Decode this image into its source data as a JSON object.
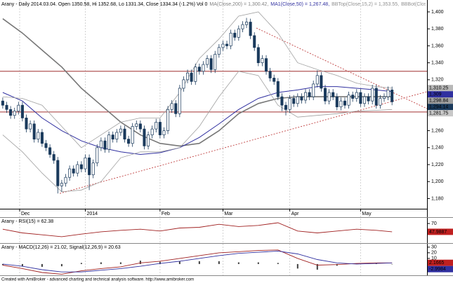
{
  "chart_data": {
    "type": "candlestick",
    "header": [
      {
        "text": "Arany - Daily 2014.03.04. Open 1350.58, Hi 1352.68, Lo 1331.34, Close 1334.34 (-1.2%) Vol 0",
        "color": "#000000"
      },
      {
        "text": "MA(Close,200) = 1,300.42,",
        "color": "#808080"
      },
      {
        "text": "MA1(Close,50) = 1,267.48,",
        "color": "#3030a0"
      },
      {
        "text": "BBTop(Close,15,2) = 1,353.55,",
        "color": "#909090"
      },
      {
        "text": "BBBot(Close,15,2) = *",
        "color": "#909090"
      }
    ],
    "up_color": "#ffffff",
    "down_color": "#1a3a5c",
    "ohlc": [
      [
        1295,
        1299,
        1286,
        1290
      ],
      [
        1290,
        1294,
        1281,
        1285
      ],
      [
        1285,
        1289,
        1274,
        1278
      ],
      [
        1278,
        1287,
        1274,
        1283
      ],
      [
        1283,
        1294,
        1279,
        1290
      ],
      [
        1290,
        1294,
        1271,
        1275
      ],
      [
        1275,
        1279,
        1258,
        1262
      ],
      [
        1262,
        1272,
        1258,
        1268
      ],
      [
        1268,
        1272,
        1246,
        1250
      ],
      [
        1250,
        1262,
        1246,
        1258
      ],
      [
        1258,
        1262,
        1241,
        1245
      ],
      [
        1245,
        1249,
        1236,
        1240
      ],
      [
        1240,
        1244,
        1228,
        1232
      ],
      [
        1232,
        1236,
        1221,
        1225
      ],
      [
        1225,
        1229,
        1186,
        1195
      ],
      [
        1195,
        1202,
        1188,
        1198
      ],
      [
        1198,
        1209,
        1194,
        1205
      ],
      [
        1205,
        1219,
        1201,
        1215
      ],
      [
        1215,
        1219,
        1206,
        1210
      ],
      [
        1210,
        1224,
        1206,
        1220
      ],
      [
        1220,
        1224,
        1211,
        1215
      ],
      [
        1215,
        1232,
        1211,
        1228
      ],
      [
        1228,
        1232,
        1190,
        1208
      ],
      [
        1208,
        1226,
        1204,
        1222
      ],
      [
        1222,
        1244,
        1218,
        1240
      ],
      [
        1240,
        1252,
        1236,
        1248
      ],
      [
        1248,
        1252,
        1234,
        1238
      ],
      [
        1238,
        1259,
        1234,
        1255
      ],
      [
        1255,
        1259,
        1246,
        1250
      ],
      [
        1250,
        1262,
        1246,
        1258
      ],
      [
        1258,
        1266,
        1254,
        1262
      ],
      [
        1262,
        1266,
        1246,
        1250
      ],
      [
        1250,
        1254,
        1241,
        1245
      ],
      [
        1245,
        1269,
        1241,
        1265
      ],
      [
        1265,
        1272,
        1261,
        1268
      ],
      [
        1268,
        1272,
        1258,
        1262
      ],
      [
        1262,
        1266,
        1238,
        1242
      ],
      [
        1242,
        1259,
        1238,
        1255
      ],
      [
        1255,
        1266,
        1251,
        1262
      ],
      [
        1262,
        1274,
        1258,
        1270
      ],
      [
        1270,
        1274,
        1251,
        1255
      ],
      [
        1255,
        1264,
        1251,
        1260
      ],
      [
        1260,
        1289,
        1256,
        1285
      ],
      [
        1285,
        1296,
        1281,
        1292
      ],
      [
        1292,
        1296,
        1276,
        1280
      ],
      [
        1280,
        1314,
        1276,
        1310
      ],
      [
        1310,
        1324,
        1306,
        1320
      ],
      [
        1320,
        1332,
        1316,
        1328
      ],
      [
        1328,
        1332,
        1314,
        1318
      ],
      [
        1318,
        1339,
        1314,
        1335
      ],
      [
        1335,
        1339,
        1326,
        1330
      ],
      [
        1330,
        1342,
        1326,
        1338
      ],
      [
        1338,
        1349,
        1334,
        1345
      ],
      [
        1345,
        1349,
        1328,
        1332
      ],
      [
        1332,
        1354,
        1328,
        1350
      ],
      [
        1350,
        1362,
        1346,
        1358
      ],
      [
        1358,
        1366,
        1354,
        1362
      ],
      [
        1362,
        1366,
        1356,
        1360
      ],
      [
        1360,
        1379,
        1356,
        1375
      ],
      [
        1375,
        1379,
        1366,
        1370
      ],
      [
        1370,
        1384,
        1366,
        1380
      ],
      [
        1380,
        1389,
        1376,
        1385
      ],
      [
        1385,
        1393,
        1381,
        1388
      ],
      [
        1388,
        1392,
        1368,
        1372
      ],
      [
        1372,
        1376,
        1354,
        1358
      ],
      [
        1358,
        1362,
        1336,
        1340
      ],
      [
        1340,
        1349,
        1336,
        1345
      ],
      [
        1345,
        1349,
        1326,
        1330
      ],
      [
        1330,
        1334,
        1318,
        1322
      ],
      [
        1322,
        1326,
        1314,
        1318
      ],
      [
        1318,
        1322,
        1296,
        1300
      ],
      [
        1300,
        1304,
        1283,
        1290
      ],
      [
        1290,
        1294,
        1278,
        1285
      ],
      [
        1285,
        1302,
        1281,
        1298
      ],
      [
        1298,
        1302,
        1288,
        1292
      ],
      [
        1292,
        1304,
        1288,
        1300
      ],
      [
        1300,
        1304,
        1292,
        1296
      ],
      [
        1296,
        1309,
        1292,
        1305
      ],
      [
        1305,
        1309,
        1296,
        1300
      ],
      [
        1300,
        1319,
        1296,
        1315
      ],
      [
        1315,
        1331,
        1311,
        1325
      ],
      [
        1325,
        1329,
        1306,
        1310
      ],
      [
        1310,
        1314,
        1291,
        1295
      ],
      [
        1295,
        1309,
        1291,
        1305
      ],
      [
        1305,
        1309,
        1296,
        1300
      ],
      [
        1300,
        1304,
        1284,
        1288
      ],
      [
        1288,
        1299,
        1284,
        1295
      ],
      [
        1295,
        1299,
        1286,
        1290
      ],
      [
        1290,
        1306,
        1286,
        1302
      ],
      [
        1302,
        1306,
        1294,
        1298
      ],
      [
        1298,
        1309,
        1294,
        1305
      ],
      [
        1305,
        1309,
        1288,
        1292
      ],
      [
        1292,
        1304,
        1288,
        1300
      ],
      [
        1300,
        1304,
        1291,
        1295
      ],
      [
        1295,
        1314,
        1291,
        1310
      ],
      [
        1310,
        1314,
        1286,
        1290
      ],
      [
        1290,
        1302,
        1286,
        1298
      ],
      [
        1298,
        1304,
        1294,
        1300
      ],
      [
        1300,
        1312,
        1296,
        1308
      ],
      [
        1308,
        1312,
        1290,
        1294
      ]
    ],
    "xlim": [
      -0.7,
      107.9
    ],
    "ylim": [
      1168,
      1414
    ],
    "xticks": [
      {
        "value": 4.3,
        "label": "Dec"
      },
      {
        "value": 21,
        "label": "2014"
      },
      {
        "value": 40,
        "label": "Feb"
      },
      {
        "value": 56,
        "label": "Mar"
      },
      {
        "value": 73,
        "label": "Apr"
      },
      {
        "value": 91,
        "label": "May"
      }
    ],
    "yticks": [
      {
        "value": 1400,
        "label": "1,400"
      },
      {
        "value": 1380,
        "label": "1,380"
      },
      {
        "value": 1360,
        "label": "1,360"
      },
      {
        "value": 1340,
        "label": "1,340"
      },
      {
        "value": 1320,
        "label": "1,320"
      },
      {
        "value": 1300,
        "label": "1,300"
      },
      {
        "value": 1280,
        "label": "1,280"
      },
      {
        "value": 1260,
        "label": "1,260"
      },
      {
        "value": 1240,
        "label": "1,240"
      },
      {
        "value": 1220,
        "label": "1,220"
      },
      {
        "value": 1200,
        "label": "1,200"
      },
      {
        "value": 1180,
        "label": "1,180"
      }
    ],
    "vertical_grid": true,
    "line_x": [
      0,
      5,
      10,
      15,
      20,
      25,
      30,
      35,
      40,
      45,
      50,
      55,
      60,
      65,
      70,
      75,
      80,
      85,
      90,
      95,
      99
    ],
    "lines": [
      {
        "color": "#777777",
        "width": 1.6,
        "values": [
          1392,
          1375,
          1355,
          1335,
          1310,
          1290,
          1270,
          1255,
          1245,
          1242,
          1245,
          1260,
          1280,
          1292,
          1298,
          1300,
          1300,
          1300,
          1300,
          1300,
          1300
        ]
      },
      {
        "color": "#3030a0",
        "width": 1,
        "values": [
          1305,
          1295,
          1275,
          1260,
          1248,
          1240,
          1235,
          1232,
          1234,
          1240,
          1252,
          1268,
          1285,
          1298,
          1305,
          1308,
          1312,
          1312,
          1310,
          1308,
          1306
        ]
      },
      {
        "color": "#a0a0a0",
        "width": 0.8,
        "values": [
          1300,
          1298,
          1290,
          1265,
          1240,
          1255,
          1270,
          1275,
          1275,
          1305,
          1345,
          1368,
          1395,
          1400,
          1375,
          1340,
          1332,
          1325,
          1316,
          1312,
          1310
        ]
      },
      {
        "color": "#a0a0a0",
        "width": 0.8,
        "values": [
          1255,
          1235,
          1210,
          1188,
          1190,
          1200,
          1228,
          1235,
          1235,
          1240,
          1265,
          1300,
          1330,
          1325,
          1290,
          1276,
          1278,
          1280,
          1283,
          1284,
          1285
        ]
      }
    ],
    "hlines": {
      "color": "#a03030",
      "values": [
        1330,
        1282
      ]
    },
    "trendlines": [
      {
        "color": "#c04040",
        "x": [
          14.5,
          107.9
        ],
        "values": [
          1186,
          1306
        ]
      },
      {
        "color": "#c04040",
        "x": [
          64.5,
          107.9
        ],
        "values": [
          1381,
          1286
        ]
      }
    ],
    "price_tags": [
      {
        "value": 1310.25,
        "label": "1,310.25",
        "color": "#b8b8b8",
        "text_color": "#000000"
      },
      {
        "value": 1309,
        "label": "1,309",
        "color": "#3030a0",
        "text_color": "#ffffff"
      },
      {
        "value": 1298.84,
        "label": "1,298.84",
        "color": "#a0a0a0",
        "text_color": "#000000"
      },
      {
        "value": 1294.14,
        "label": "1,294.14",
        "color": "#1a3a5c",
        "text_color": "#ffffff"
      },
      {
        "value": 1281.75,
        "label": "1,281.75",
        "color": "#c8c8c8",
        "text_color": "#000000"
      }
    ],
    "rsi": {
      "title": "Arany - RSI(15) = 62.38",
      "ylim": [
        20,
        85
      ],
      "yticks": [
        70
      ],
      "series": [
        {
          "color": "#a02020",
          "values": [
            55,
            45,
            40,
            35,
            42,
            48,
            52,
            55,
            50,
            58,
            60,
            68,
            62,
            65,
            72,
            50,
            45,
            50,
            55,
            52,
            48
          ]
        }
      ],
      "tags": [
        {
          "value": 47.9887,
          "color": "#c02020",
          "text_color": "#ffffff"
        }
      ]
    },
    "macd": {
      "title": "Arany - MACD(12,26) = 21.02, Signal(12,26,9) = 20.63",
      "ylim": [
        -20,
        36
      ],
      "yticks": [
        30,
        20,
        10,
        -10
      ],
      "series": [
        {
          "color": "#a02020",
          "values": [
            -2,
            -8,
            -15,
            -18,
            -12,
            -8,
            -5,
            2,
            5,
            10,
            15,
            20,
            22,
            24,
            25,
            10,
            -2,
            -1,
            1,
            2,
            2
          ]
        },
        {
          "color": "#3030a0",
          "values": [
            0,
            -4,
            -10,
            -14,
            -14,
            -11,
            -8,
            -4,
            1,
            5,
            10,
            15,
            19,
            21,
            23,
            18,
            8,
            2,
            0,
            1,
            2
          ]
        }
      ],
      "histogram": {
        "color": "#404040",
        "values": [
          -2,
          -4,
          -5,
          -4,
          2,
          3,
          3,
          6,
          4,
          5,
          5,
          5,
          3,
          3,
          2,
          -8,
          -10,
          -3,
          1,
          1,
          0
        ]
      },
      "tags": [
        {
          "value": 2.1665,
          "color": "#c02020",
          "text_color": "#ffffff"
        },
        {
          "value": -2.9984,
          "color": "#3030a0",
          "text_color": "#ffffff"
        }
      ]
    },
    "footer": "Created with AmiBroker - advanced charting and technical analysis software. http://www.amibroker.com"
  }
}
